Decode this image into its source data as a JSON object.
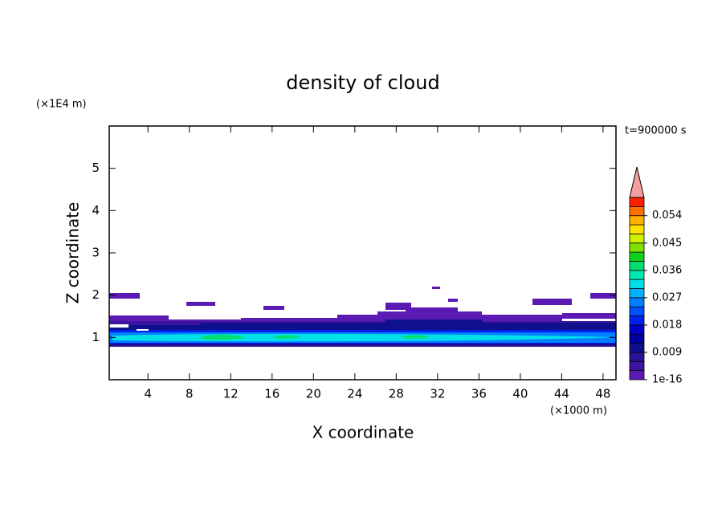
{
  "chart_data": {
    "type": "contour",
    "title": "density of cloud",
    "x_label": "X coordinate",
    "y_label": "Z coordinate",
    "x_unit": "(×1000 m)",
    "y_unit": "(×1E4 m)",
    "annotation": "t=900000 s",
    "xlim": [
      0.25,
      49.25
    ],
    "xticks": [
      4,
      8,
      12,
      16,
      20,
      24,
      28,
      32,
      36,
      40,
      44,
      48
    ],
    "ylim": [
      0,
      6
    ],
    "yticks": [
      1,
      2,
      3,
      4,
      5
    ],
    "colorbar": {
      "lim": [
        0,
        0.06
      ],
      "ticks": [
        {
          "value": 1e-16,
          "label": "1e-16"
        },
        0.009,
        0.018,
        0.027,
        0.036,
        0.045,
        0.054
      ],
      "colors": [
        "#5c1ab4",
        "#3c14a0",
        "#281496",
        "#10108c",
        "#0000a0",
        "#0000c8",
        "#0020f0",
        "#0050ff",
        "#0080ff",
        "#00b0ff",
        "#00e0e8",
        "#00e8b0",
        "#00e070",
        "#10d020",
        "#80e000",
        "#d0f000",
        "#ffe000",
        "#ffb000",
        "#ff7000",
        "#ff2000"
      ],
      "extend_color": "#f4a0a0"
    }
  }
}
